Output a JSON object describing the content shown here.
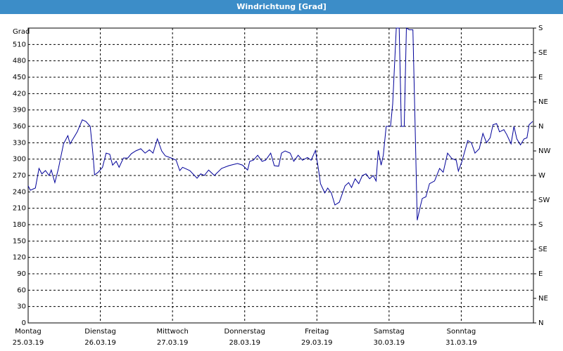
{
  "chart_data": {
    "type": "line",
    "title": "Windrichtung [Grad]",
    "ylabel": "Grad",
    "xlim": [
      0,
      7
    ],
    "xticks": [
      {
        "value": 0,
        "label": "Montag"
      },
      {
        "value": 1,
        "label": "Dienstag"
      },
      {
        "value": 2,
        "label": "Mittwoch"
      },
      {
        "value": 3,
        "label": "Donnerstag"
      },
      {
        "value": 4,
        "label": "Freitag"
      },
      {
        "value": 5,
        "label": "Samstag"
      },
      {
        "value": 6,
        "label": "Sonntag"
      }
    ],
    "xtick_dates": [
      "25.03.19",
      "26.03.19",
      "27.03.19",
      "28.03.19",
      "29.03.19",
      "30.03.19",
      "31.03.19"
    ],
    "ylim": [
      0,
      540
    ],
    "yticks": [
      0,
      30,
      60,
      90,
      120,
      150,
      180,
      210,
      240,
      270,
      300,
      330,
      360,
      390,
      420,
      450,
      480,
      510
    ],
    "y2lim": [
      0,
      540
    ],
    "y2ticks": [
      {
        "value": 0,
        "label": "N"
      },
      {
        "value": 45,
        "label": "NE"
      },
      {
        "value": 90,
        "label": "E"
      },
      {
        "value": 135,
        "label": "SE"
      },
      {
        "value": 180,
        "label": "S"
      },
      {
        "value": 225,
        "label": "SW"
      },
      {
        "value": 270,
        "label": "W"
      },
      {
        "value": 315,
        "label": "NW"
      },
      {
        "value": 360,
        "label": "N"
      },
      {
        "value": 405,
        "label": "NE"
      },
      {
        "value": 450,
        "label": "E"
      },
      {
        "value": 495,
        "label": "SE"
      },
      {
        "value": 540,
        "label": "S"
      }
    ],
    "grid": true,
    "color": "#000099",
    "x": [
      0,
      0.03,
      0.1,
      0.15,
      0.19,
      0.24,
      0.29,
      0.32,
      0.37,
      0.42,
      0.49,
      0.55,
      0.58,
      0.63,
      0.68,
      0.75,
      0.8,
      0.86,
      0.9,
      0.92,
      0.97,
      1.03,
      1.08,
      1.13,
      1.17,
      1.22,
      1.26,
      1.32,
      1.38,
      1.43,
      1.49,
      1.56,
      1.62,
      1.68,
      1.73,
      1.79,
      1.85,
      1.9,
      2.0,
      2.05,
      2.1,
      2.14,
      2.24,
      2.34,
      2.39,
      2.44,
      2.5,
      2.58,
      2.68,
      2.78,
      2.9,
      2.97,
      3.04,
      3.07,
      3.12,
      3.18,
      3.24,
      3.29,
      3.36,
      3.41,
      3.47,
      3.51,
      3.56,
      3.63,
      3.68,
      3.74,
      3.8,
      3.87,
      3.92,
      3.98,
      4.02,
      4.05,
      4.11,
      4.15,
      4.2,
      4.25,
      4.31,
      4.39,
      4.44,
      4.48,
      4.53,
      4.58,
      4.63,
      4.68,
      4.73,
      4.78,
      4.82,
      4.85,
      4.89,
      4.92,
      4.96,
      5.02,
      5.05,
      5.1,
      5.14,
      5.17,
      5.21,
      5.24,
      5.28,
      5.33,
      5.36,
      5.39,
      5.43,
      5.46,
      5.51,
      5.56,
      5.63,
      5.7,
      5.75,
      5.81,
      5.87,
      5.93,
      5.96,
      6.01,
      6.09,
      6.14,
      6.19,
      6.25,
      6.3,
      6.35,
      6.4,
      6.44,
      6.49,
      6.53,
      6.59,
      6.63,
      6.69,
      6.73,
      6.77,
      6.82,
      6.87,
      6.91,
      6.94,
      6.99
    ],
    "values": [
      251,
      243,
      247,
      283,
      273,
      279,
      270,
      280,
      257,
      283,
      328,
      343,
      328,
      339,
      350,
      372,
      369,
      360,
      306,
      271,
      276,
      285,
      311,
      309,
      289,
      296,
      285,
      302,
      302,
      310,
      315,
      319,
      311,
      317,
      311,
      337,
      315,
      306,
      301,
      298,
      279,
      285,
      279,
      265,
      273,
      270,
      280,
      270,
      283,
      288,
      292,
      289,
      280,
      296,
      298,
      307,
      296,
      298,
      311,
      288,
      287,
      311,
      315,
      311,
      296,
      307,
      298,
      303,
      298,
      316,
      283,
      255,
      238,
      247,
      238,
      216,
      221,
      251,
      257,
      248,
      264,
      255,
      270,
      273,
      264,
      270,
      260,
      316,
      289,
      307,
      360,
      360,
      401,
      540,
      540,
      360,
      360,
      540,
      537,
      537,
      366,
      188,
      212,
      228,
      231,
      255,
      260,
      283,
      276,
      311,
      301,
      298,
      278,
      296,
      334,
      330,
      311,
      319,
      347,
      330,
      339,
      363,
      365,
      350,
      354,
      345,
      328,
      360,
      337,
      326,
      337,
      339,
      363,
      369
    ]
  }
}
